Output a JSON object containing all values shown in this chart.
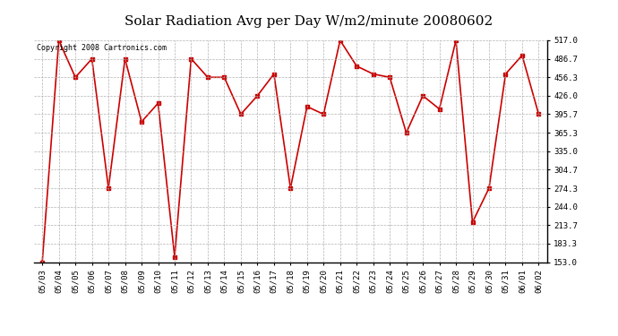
{
  "title": "Solar Radiation Avg per Day W/m2/minute 20080602",
  "copyright": "Copyright 2008 Cartronics.com",
  "dates": [
    "05/03",
    "05/04",
    "05/05",
    "05/06",
    "05/07",
    "05/08",
    "05/09",
    "05/10",
    "05/11",
    "05/12",
    "05/13",
    "05/14",
    "05/15",
    "05/16",
    "05/17",
    "05/18",
    "05/19",
    "05/20",
    "05/21",
    "05/22",
    "05/23",
    "05/24",
    "05/25",
    "05/26",
    "05/27",
    "05/28",
    "05/29",
    "05/30",
    "05/31",
    "06/01",
    "06/02"
  ],
  "values": [
    153.0,
    517.0,
    456.3,
    486.7,
    274.3,
    486.7,
    383.3,
    413.7,
    161.7,
    486.7,
    456.3,
    456.3,
    395.7,
    426.0,
    461.7,
    274.3,
    408.3,
    395.7,
    517.0,
    474.7,
    461.7,
    456.3,
    365.3,
    426.0,
    404.3,
    517.0,
    218.3,
    274.3,
    461.7,
    492.3,
    395.7
  ],
  "ylim": [
    153.0,
    517.0
  ],
  "yticks": [
    153.0,
    183.3,
    213.7,
    244.0,
    274.3,
    304.7,
    335.0,
    365.3,
    395.7,
    426.0,
    456.3,
    486.7,
    517.0
  ],
  "line_color": "#cc0000",
  "marker": "s",
  "marker_size": 2.5,
  "bg_color": "#ffffff",
  "grid_color": "#aaaaaa",
  "title_fontsize": 11,
  "copyright_fontsize": 6,
  "tick_fontsize": 6.5
}
